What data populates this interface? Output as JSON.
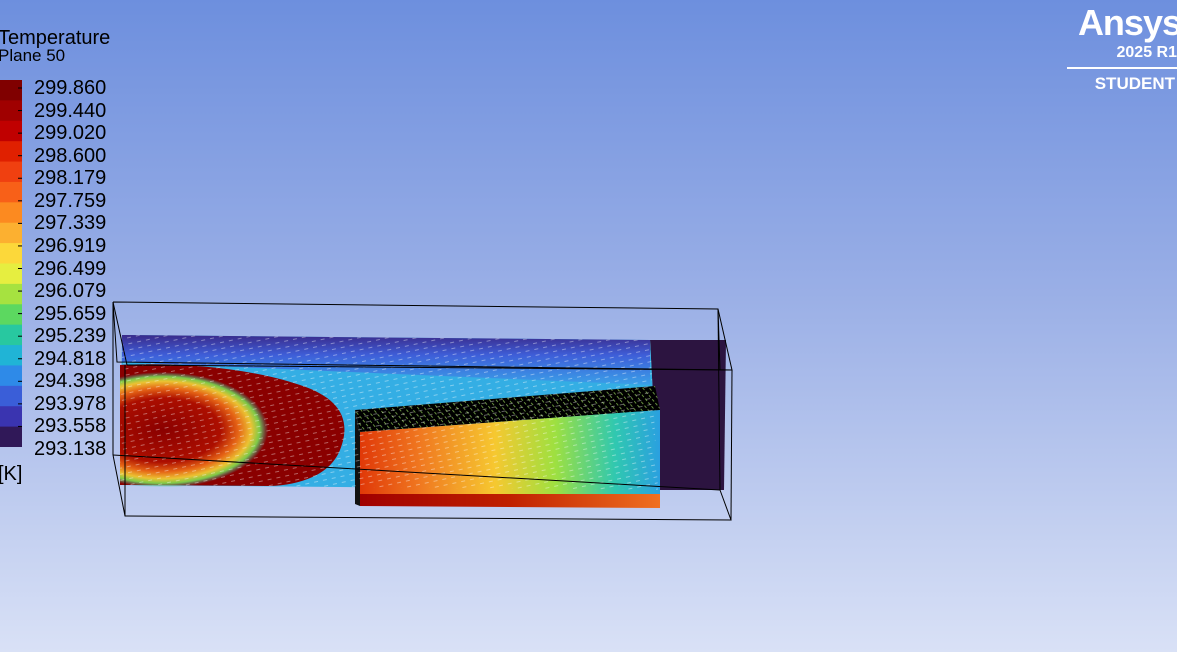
{
  "legend": {
    "title": "Temperature",
    "subtitle": "Plane 50",
    "unit": "[K]",
    "ticks": [
      "299.860",
      "299.440",
      "299.020",
      "298.600",
      "298.179",
      "297.759",
      "297.339",
      "296.919",
      "296.499",
      "296.079",
      "295.659",
      "295.239",
      "294.818",
      "294.398",
      "293.978",
      "293.558",
      "293.138"
    ],
    "colors": [
      "#800000",
      "#a00000",
      "#c00000",
      "#e02000",
      "#f04010",
      "#f86018",
      "#fc8a20",
      "#fcb030",
      "#fcd83a",
      "#e6ee40",
      "#a6e240",
      "#5cd860",
      "#28c8a0",
      "#20b4d6",
      "#2e8ae8",
      "#3a5ed8",
      "#3a34b0",
      "#301858"
    ]
  },
  "logo": {
    "brand": "Ansys",
    "version": "2025 R1",
    "edition": "STUDENT"
  },
  "scene": {
    "colors": {
      "hot": "#8a0000",
      "cold": "#2c1440",
      "wireframe": "#000000"
    }
  }
}
